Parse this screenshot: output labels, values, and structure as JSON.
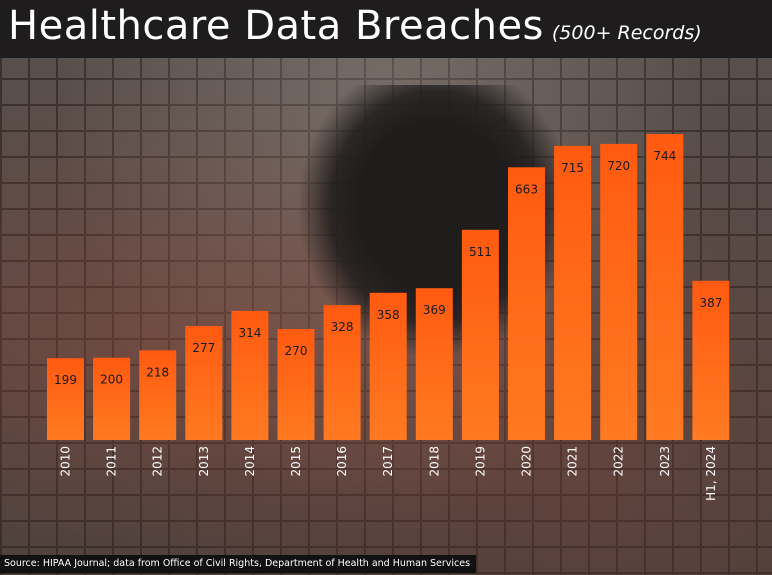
{
  "header": {
    "title": "Healthcare Data Breaches",
    "subtitle": "(500+ Records)"
  },
  "footer": {
    "source": "Source: HIPAA Journal; data from Office of Civil Rights, Department of Health and Human Services"
  },
  "colors": {
    "bar_top": "#ff5a10",
    "bar_bottom": "#ff7a22"
  },
  "chart_data": {
    "type": "bar",
    "title": "Healthcare Data Breaches",
    "subtitle": "(500+ Records)",
    "xlabel": "",
    "ylabel": "",
    "categories": [
      "2010",
      "2011",
      "2012",
      "2013",
      "2014",
      "2015",
      "2016",
      "2017",
      "2018",
      "2019",
      "2020",
      "2021",
      "2022",
      "2023",
      "H1, 2024"
    ],
    "values": [
      199,
      200,
      218,
      277,
      314,
      270,
      328,
      358,
      369,
      511,
      663,
      715,
      720,
      744,
      387
    ],
    "ylim": [
      0,
      744
    ],
    "grid": false,
    "legend": "none",
    "data_labels": true
  }
}
